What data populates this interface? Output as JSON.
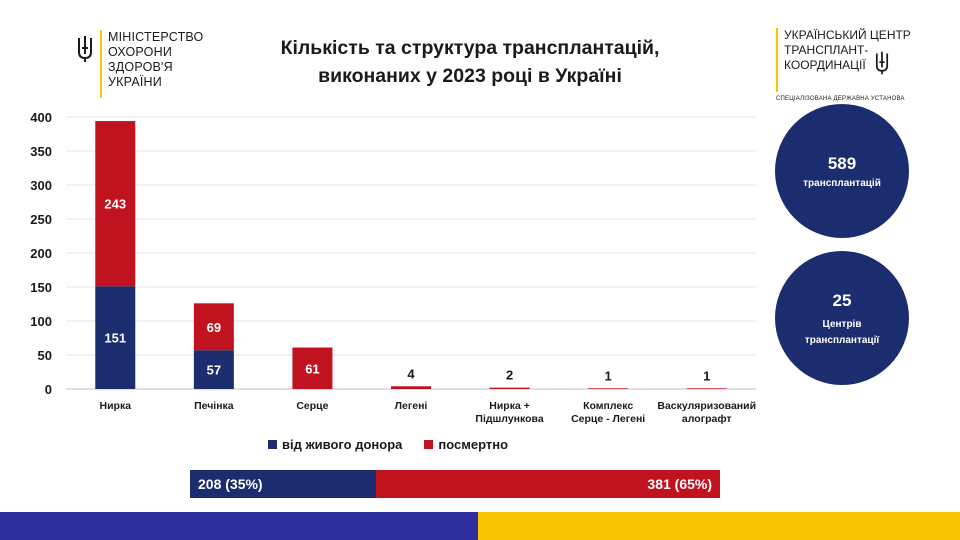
{
  "header": {
    "ministry_lines": [
      "МІНІСТЕРСТВО",
      "ОХОРОНИ",
      "ЗДОРОВ'Я",
      "УКРАЇНИ"
    ],
    "center_lines": [
      "УКРАЇНСЬКИЙ ЦЕНТР",
      "ТРАНСПЛАНТ-",
      "КООРДИНАЦІЇ"
    ],
    "center_subtitle": "СПЕЦІАЛІЗОВАНА ДЕРЖАВНА УСТАНОВА",
    "title_line1": "Кількість та структура трансплантацій,",
    "title_line2": "виконаних у 2023 році в Україні"
  },
  "chart_data": {
    "type": "bar",
    "stacked": true,
    "categories": [
      "Нирка",
      "Печінка",
      "Серце",
      "Легені",
      "Нирка + Підшлункова",
      "Комплекс Серце - Легені",
      "Васкуляризований алографт"
    ],
    "category_label_lines": [
      [
        "Нирка"
      ],
      [
        "Печінка"
      ],
      [
        "Серце"
      ],
      [
        "Легені"
      ],
      [
        "Нирка +",
        "Підшлункова"
      ],
      [
        "Комплекс",
        "Серце - Легені"
      ],
      [
        "Васкуляризований",
        "алографт"
      ]
    ],
    "series": [
      {
        "name": "від живого донора",
        "values": [
          151,
          57,
          0,
          0,
          0,
          0,
          0
        ],
        "color": "#1b2d6e"
      },
      {
        "name": "посмертно",
        "values": [
          243,
          69,
          61,
          4,
          2,
          1,
          1
        ],
        "color": "#c1121f"
      }
    ],
    "inner_labels": {
      "live": [
        "151",
        "57",
        "",
        "",
        "",
        "",
        ""
      ],
      "deceased": [
        "243",
        "69",
        "61",
        "",
        "",
        "",
        ""
      ]
    },
    "top_labels": [
      "",
      "",
      "",
      "4",
      "2",
      "1",
      "1"
    ],
    "yticks": [
      0,
      50,
      100,
      150,
      200,
      250,
      300,
      350,
      400
    ],
    "ylim": [
      0,
      400
    ],
    "grid": true,
    "legend_position": "bottom"
  },
  "summary": {
    "total_value": "589",
    "total_label": "трансплантацій",
    "centers_value": "25",
    "centers_label_line1": "Центрів",
    "centers_label_line2": "трансплантації"
  },
  "split": {
    "live_text": "208 (35%)",
    "deceased_text": "381 (65%)",
    "live_fraction": 0.35
  },
  "colors": {
    "navy": "#1b2d6e",
    "red": "#c1121f",
    "blue_stripe": "#2e2e9e",
    "yellow": "#f7c600"
  }
}
